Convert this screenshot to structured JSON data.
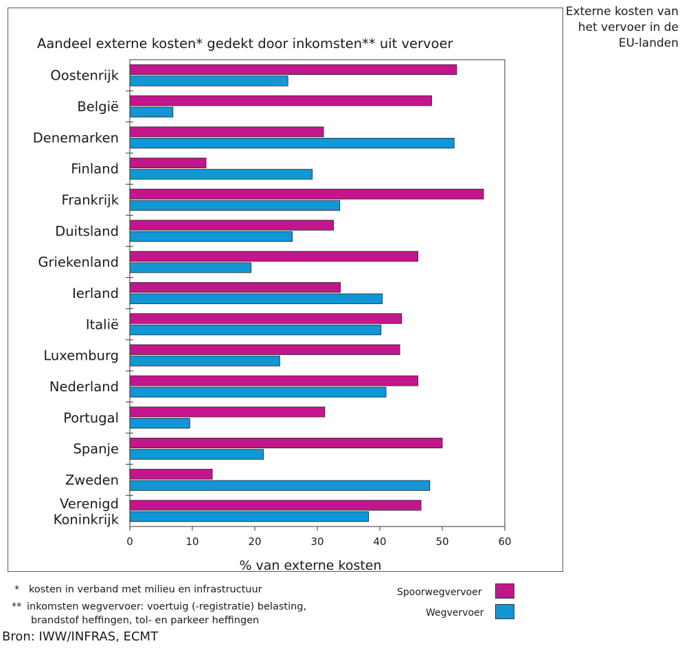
{
  "side_title": "Externe kosten van het vervoer in de EU-landen",
  "source": "Bron: IWW/INFRAS, ECMT",
  "notes": {
    "n1_marker": "*",
    "n1_text": "kosten in verband met milieu en infrastructuur",
    "n2_marker": "**",
    "n2_line1": "inkomsten wegvervoer: voertuig (-registratie) belasting,",
    "n2_line2": "brandstof heffingen, tol-  en parkeer heffingen"
  },
  "colors": {
    "rail": "#c4168c",
    "road": "#1196d6"
  },
  "chart_data": {
    "type": "bar",
    "orientation": "horizontal",
    "title": "Aandeel externe kosten* gedekt door inkomsten** uit vervoer",
    "xlabel": "% van externe kosten",
    "ylabel": "",
    "xlim": [
      0,
      60
    ],
    "xticks": [
      0,
      10,
      20,
      30,
      40,
      50,
      60
    ],
    "grid": false,
    "legend": "bottom-right",
    "categories": [
      "Oostenrijk",
      "België",
      "Denemarken",
      "Finland",
      "Frankrijk",
      "Duitsland",
      "Griekenland",
      "Ierland",
      "Italië",
      "Luxemburg",
      "Nederland",
      "Portugal",
      "Spanje",
      "Zweden",
      "Verenigd Koninkrijk"
    ],
    "series": [
      {
        "name": "Spoorwegvervoer",
        "color": "#c4168c",
        "values": [
          52.3,
          48.3,
          31.0,
          12.2,
          56.6,
          32.6,
          46.1,
          33.7,
          43.5,
          43.2,
          46.1,
          31.2,
          50.0,
          13.2,
          46.6
        ]
      },
      {
        "name": "Wegvervoer",
        "color": "#1196d6",
        "values": [
          25.3,
          6.9,
          51.9,
          29.2,
          33.6,
          26.0,
          19.4,
          40.4,
          40.2,
          24.0,
          41.0,
          9.6,
          21.4,
          48.0,
          38.2
        ]
      }
    ]
  }
}
